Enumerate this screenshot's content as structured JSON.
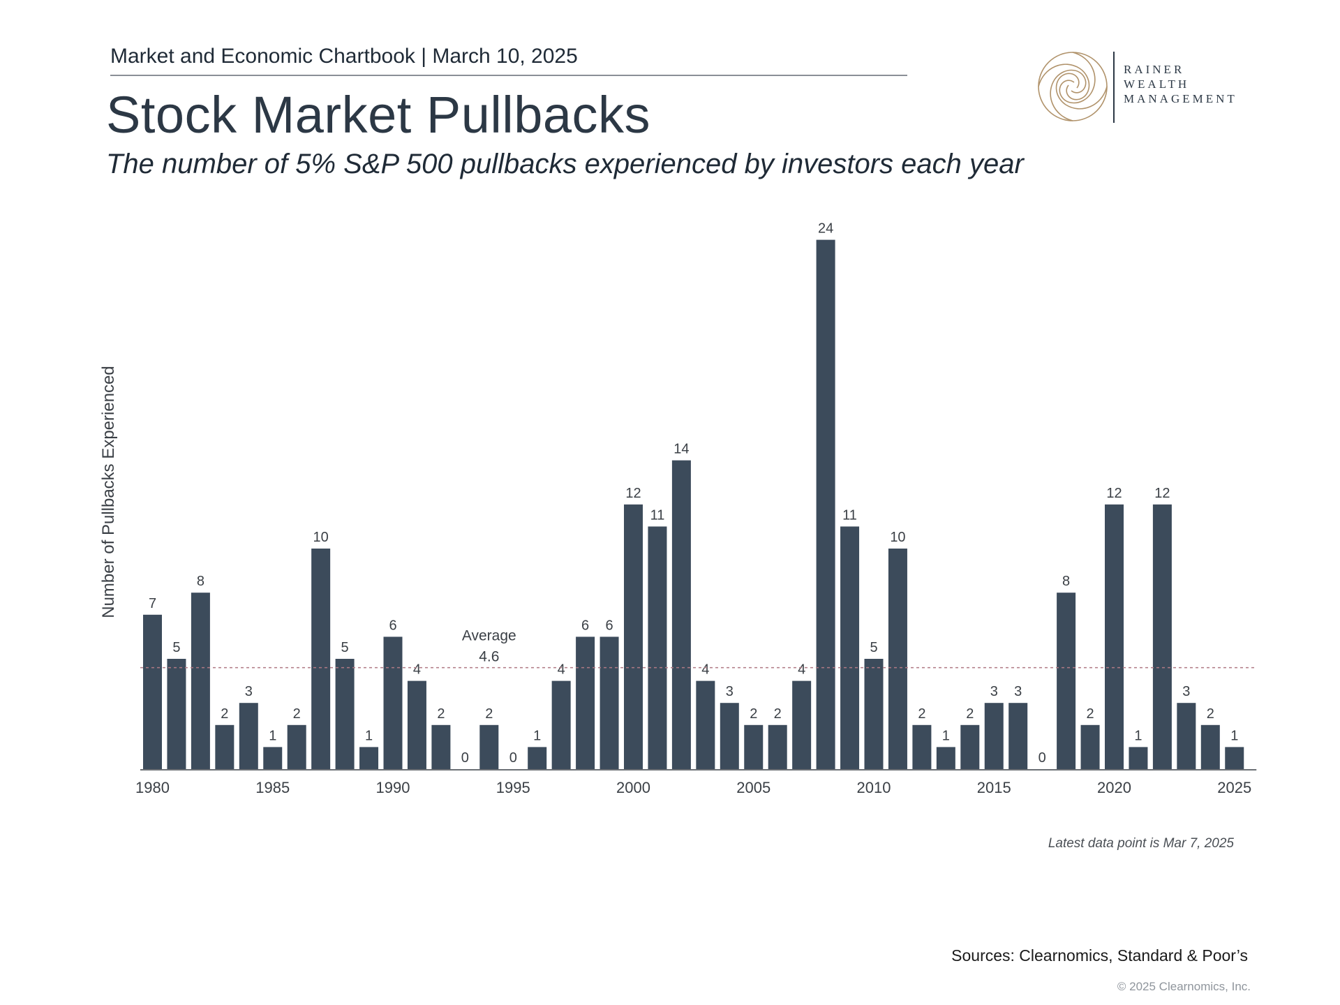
{
  "header": {
    "chartbook": "Market and Economic Chartbook | March 10, 2025",
    "title": "Stock Market Pullbacks",
    "subtitle": "The number of 5% S&P 500 pullbacks experienced by investors each year"
  },
  "logo": {
    "line1": "RAINER",
    "line2": "WEALTH",
    "line3": "MANAGEMENT",
    "ring_color": "#b0926a"
  },
  "footer": {
    "sources": "Sources: Clearnomics, Standard & Poor’s",
    "copyright": "© 2025 Clearnomics, Inc."
  },
  "chart_data": {
    "type": "bar",
    "title": "Stock Market Pullbacks",
    "ylabel": "Number of Pullbacks Experienced",
    "xlabel": "",
    "categories": [
      1980,
      1981,
      1982,
      1983,
      1984,
      1985,
      1986,
      1987,
      1988,
      1989,
      1990,
      1991,
      1992,
      1993,
      1994,
      1995,
      1996,
      1997,
      1998,
      1999,
      2000,
      2001,
      2002,
      2003,
      2004,
      2005,
      2006,
      2007,
      2008,
      2009,
      2010,
      2011,
      2012,
      2013,
      2014,
      2015,
      2016,
      2017,
      2018,
      2019,
      2020,
      2021,
      2022,
      2023,
      2024,
      2025
    ],
    "values": [
      7,
      5,
      8,
      2,
      3,
      1,
      2,
      10,
      5,
      1,
      6,
      4,
      2,
      0,
      2,
      0,
      1,
      4,
      6,
      6,
      12,
      11,
      14,
      4,
      3,
      2,
      2,
      4,
      24,
      11,
      5,
      10,
      2,
      1,
      2,
      3,
      3,
      0,
      8,
      2,
      12,
      1,
      12,
      3,
      2,
      1
    ],
    "x_tick_labels": [
      "1980",
      "1985",
      "1990",
      "1995",
      "2000",
      "2005",
      "2010",
      "2015",
      "2020",
      "2025"
    ],
    "ylim": [
      0,
      24
    ],
    "grid": false,
    "average": {
      "value": 4.6,
      "label_line1": "Average",
      "label_line2": "4.6"
    },
    "annotation": "Latest data point is Mar 7, 2025",
    "bar_color": "#3c4b5b",
    "average_line_color": "#b07a84"
  }
}
